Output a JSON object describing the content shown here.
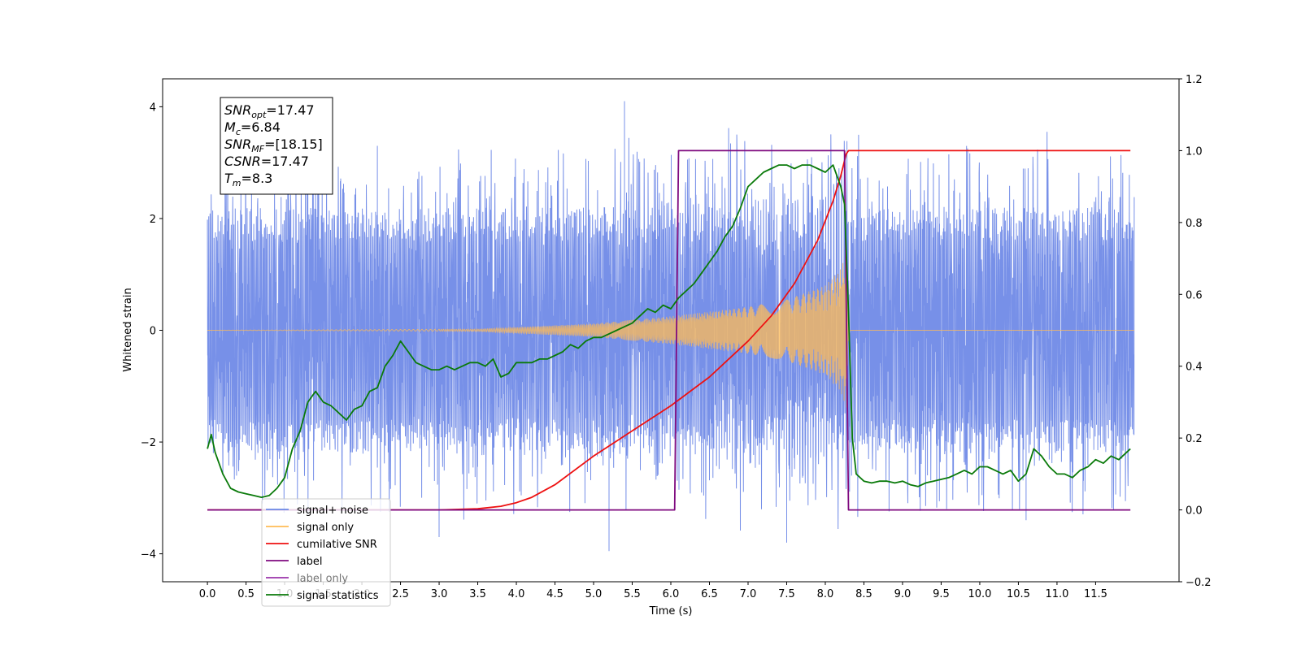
{
  "chart_data": {
    "type": "line",
    "xlabel": "Time (s)",
    "ylabel_left": "Whitened strain",
    "ylabel_right": "",
    "xlim": [
      -0.58,
      12.58
    ],
    "ylim_left": [
      -4.5,
      4.5
    ],
    "ylim_right": [
      -0.2,
      1.2
    ],
    "x_ticks": [
      0.0,
      0.5,
      1.0,
      1.5,
      2.0,
      2.5,
      3.0,
      3.5,
      4.0,
      4.5,
      5.0,
      5.5,
      6.0,
      6.5,
      7.0,
      7.5,
      8.0,
      8.5,
      9.0,
      9.5,
      10.0,
      10.5,
      11.0,
      11.5
    ],
    "y_ticks_left": [
      -4,
      -2,
      0,
      2,
      4
    ],
    "y_ticks_right": [
      -0.2,
      0.0,
      0.2,
      0.4,
      0.6,
      0.8,
      1.0,
      1.2
    ],
    "x_tick_labels": [
      "0.0",
      "0.5",
      "1.0",
      "1.5",
      "2.0",
      "2.5",
      "3.0",
      "3.5",
      "4.0",
      "4.5",
      "5.0",
      "5.5",
      "6.0",
      "6.5",
      "7.0",
      "7.5",
      "8.0",
      "8.5",
      "9.0",
      "9.5",
      "10.0",
      "10.5",
      "11.0",
      "11.5"
    ],
    "y_tick_labels_left": [
      "−4",
      "−2",
      "0",
      "2",
      "4"
    ],
    "y_tick_labels_right": [
      "−0.2",
      "0.0",
      "0.2",
      "0.4",
      "0.6",
      "0.8",
      "1.0",
      "1.2"
    ],
    "grid": false,
    "legend_position": "lower-left",
    "series": [
      {
        "name": "signal+ noise",
        "axis": "left",
        "color": "#6b87e6",
        "style": "noise-band",
        "x_range": [
          0.0,
          12.0
        ],
        "approx_amplitude": 2.0,
        "peak_values": [
          [
            1.4,
            3.35
          ],
          [
            2.2,
            3.3
          ],
          [
            5.4,
            4.1
          ],
          [
            5.2,
            -3.95
          ],
          [
            7.5,
            -3.8
          ],
          [
            3.0,
            -3.7
          ],
          [
            10.6,
            -3.4
          ]
        ]
      },
      {
        "name": "signal only",
        "axis": "left",
        "color": "#ffbb55",
        "style": "chirp",
        "x_range": [
          0.0,
          12.0
        ],
        "merger_time": 8.3,
        "envelope": [
          [
            0.0,
            0.0
          ],
          [
            3.5,
            0.02
          ],
          [
            5.0,
            0.12
          ],
          [
            6.0,
            0.25
          ],
          [
            7.0,
            0.42
          ],
          [
            7.5,
            0.55
          ],
          [
            8.0,
            0.8
          ],
          [
            8.2,
            1.1
          ],
          [
            8.28,
            1.4
          ],
          [
            8.3,
            0.0
          ],
          [
            12.0,
            0.0
          ]
        ]
      },
      {
        "name": "cumilative SNR",
        "axis": "right",
        "color": "#ee1111",
        "x": [
          0.0,
          3.0,
          3.5,
          3.8,
          4.0,
          4.2,
          4.5,
          5.0,
          5.5,
          6.0,
          6.5,
          7.0,
          7.3,
          7.6,
          7.9,
          8.1,
          8.2,
          8.27,
          8.3,
          11.95
        ],
        "y": [
          0.0,
          0.0,
          0.003,
          0.01,
          0.02,
          0.035,
          0.07,
          0.15,
          0.22,
          0.29,
          0.37,
          0.47,
          0.54,
          0.63,
          0.75,
          0.86,
          0.93,
          0.99,
          1.0,
          1.0
        ]
      },
      {
        "name": "label",
        "axis": "right",
        "color": "#7f0a7f",
        "x": [
          0.0,
          6.05,
          6.1,
          8.25,
          8.3,
          11.95
        ],
        "y": [
          0.0,
          0.0,
          1.0,
          1.0,
          0.0,
          0.0
        ]
      },
      {
        "name": "label only",
        "axis": "right",
        "color": "#9933aa",
        "hidden": true
      },
      {
        "name": "signal statistics",
        "axis": "right",
        "color": "#0a7a0a",
        "x": [
          0.0,
          0.05,
          0.1,
          0.2,
          0.3,
          0.4,
          0.5,
          0.6,
          0.7,
          0.8,
          0.9,
          1.0,
          1.1,
          1.2,
          1.3,
          1.4,
          1.5,
          1.6,
          1.7,
          1.8,
          1.9,
          2.0,
          2.1,
          2.2,
          2.3,
          2.4,
          2.5,
          2.6,
          2.7,
          2.8,
          2.9,
          3.0,
          3.1,
          3.2,
          3.3,
          3.4,
          3.5,
          3.6,
          3.7,
          3.8,
          3.9,
          4.0,
          4.1,
          4.2,
          4.3,
          4.4,
          4.5,
          4.6,
          4.7,
          4.8,
          4.9,
          5.0,
          5.1,
          5.2,
          5.3,
          5.4,
          5.5,
          5.6,
          5.7,
          5.8,
          5.9,
          6.0,
          6.1,
          6.2,
          6.3,
          6.4,
          6.5,
          6.6,
          6.7,
          6.8,
          6.9,
          7.0,
          7.1,
          7.2,
          7.3,
          7.4,
          7.5,
          7.6,
          7.7,
          7.8,
          7.9,
          8.0,
          8.1,
          8.2,
          8.25,
          8.3,
          8.35,
          8.4,
          8.5,
          8.6,
          8.7,
          8.8,
          8.9,
          9.0,
          9.1,
          9.2,
          9.3,
          9.4,
          9.5,
          9.6,
          9.7,
          9.8,
          9.9,
          10.0,
          10.1,
          10.2,
          10.3,
          10.4,
          10.5,
          10.6,
          10.7,
          10.8,
          10.9,
          11.0,
          11.1,
          11.2,
          11.3,
          11.4,
          11.5,
          11.6,
          11.7,
          11.8,
          11.9,
          11.95
        ],
        "y": [
          0.17,
          0.21,
          0.16,
          0.1,
          0.06,
          0.05,
          0.045,
          0.04,
          0.035,
          0.04,
          0.06,
          0.09,
          0.17,
          0.22,
          0.3,
          0.33,
          0.3,
          0.29,
          0.27,
          0.25,
          0.28,
          0.29,
          0.33,
          0.34,
          0.4,
          0.43,
          0.47,
          0.44,
          0.41,
          0.4,
          0.39,
          0.39,
          0.4,
          0.39,
          0.4,
          0.41,
          0.41,
          0.4,
          0.42,
          0.37,
          0.38,
          0.41,
          0.41,
          0.41,
          0.42,
          0.42,
          0.43,
          0.44,
          0.46,
          0.45,
          0.47,
          0.48,
          0.48,
          0.49,
          0.5,
          0.51,
          0.52,
          0.54,
          0.56,
          0.55,
          0.57,
          0.56,
          0.59,
          0.61,
          0.63,
          0.66,
          0.69,
          0.72,
          0.76,
          0.79,
          0.84,
          0.9,
          0.92,
          0.94,
          0.95,
          0.96,
          0.96,
          0.95,
          0.96,
          0.96,
          0.95,
          0.94,
          0.96,
          0.9,
          0.85,
          0.55,
          0.2,
          0.1,
          0.08,
          0.075,
          0.08,
          0.08,
          0.075,
          0.08,
          0.07,
          0.065,
          0.075,
          0.08,
          0.085,
          0.09,
          0.1,
          0.11,
          0.1,
          0.12,
          0.12,
          0.11,
          0.1,
          0.11,
          0.08,
          0.1,
          0.17,
          0.15,
          0.12,
          0.1,
          0.1,
          0.09,
          0.11,
          0.12,
          0.14,
          0.13,
          0.15,
          0.14,
          0.16,
          0.17
        ]
      }
    ],
    "legend": [
      "signal+ noise",
      "signal only",
      "cumilative SNR",
      "label",
      "label only",
      "signal statistics"
    ],
    "annotation": {
      "lines": [
        {
          "base": "SNR",
          "sub": "opt",
          "rest": "=17.47"
        },
        {
          "base": "M",
          "sub": "c",
          "rest": "=6.84"
        },
        {
          "base": "SNR",
          "sub": "MF",
          "rest": "=[18.15]"
        },
        {
          "base": "CSNR",
          "sub": "",
          "rest": "=17.47"
        },
        {
          "base": "T",
          "sub": "m",
          "rest": "=8.3"
        }
      ]
    }
  }
}
